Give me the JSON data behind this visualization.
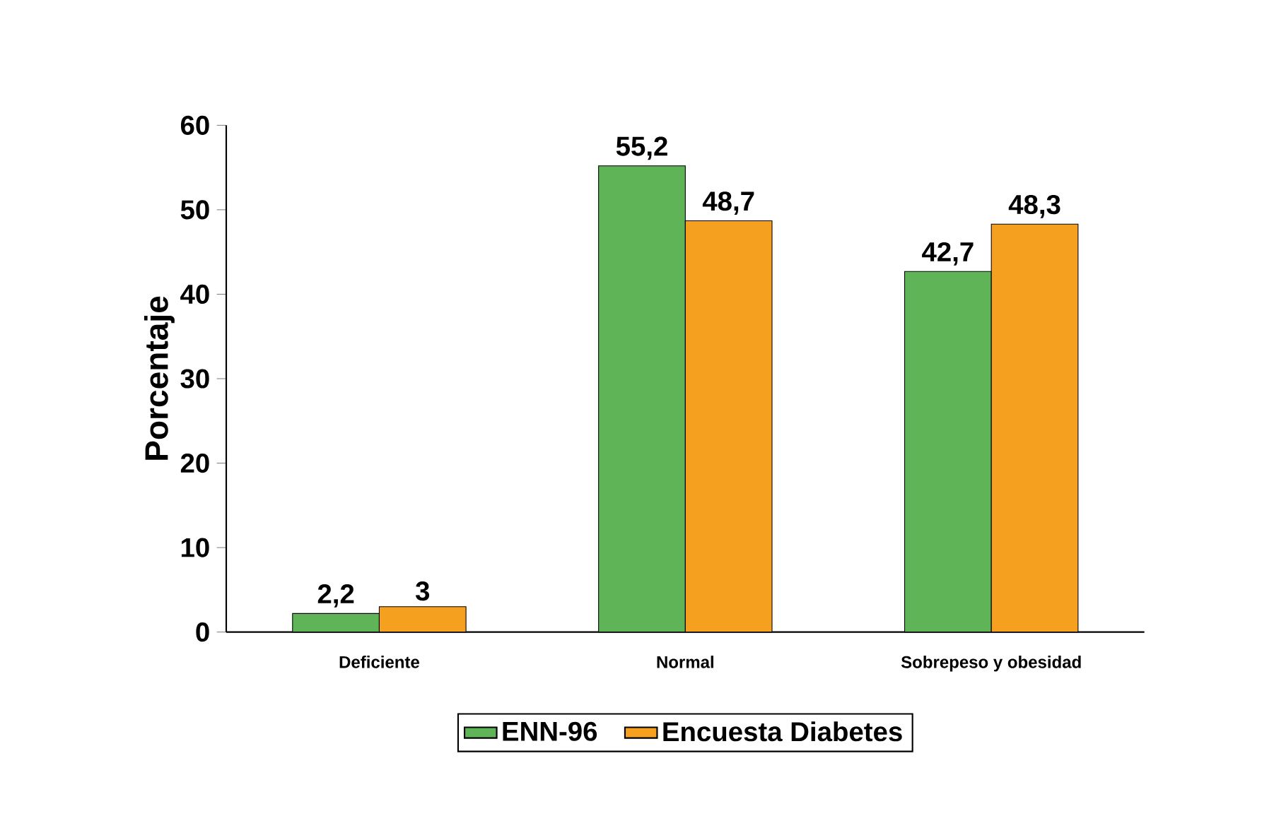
{
  "chart_data": {
    "type": "bar",
    "ylabel": "Porcentaje",
    "categories": [
      "Deficiente",
      "Normal",
      "Sobrepeso y obesidad"
    ],
    "series": [
      {
        "name": "ENN-96",
        "color": "#5fb458",
        "values": [
          2.2,
          55.2,
          42.7
        ],
        "value_labels": [
          "2,2",
          "55,2",
          "42,7"
        ]
      },
      {
        "name": "Encuesta Diabetes",
        "color": "#f5a01f",
        "values": [
          3,
          48.7,
          48.3
        ],
        "value_labels": [
          "3",
          "48,7",
          "48,3"
        ]
      }
    ],
    "ylim": [
      0,
      60
    ],
    "yticks": [
      0,
      10,
      20,
      30,
      40,
      50,
      60
    ],
    "grid": false,
    "legend": "bottom"
  }
}
